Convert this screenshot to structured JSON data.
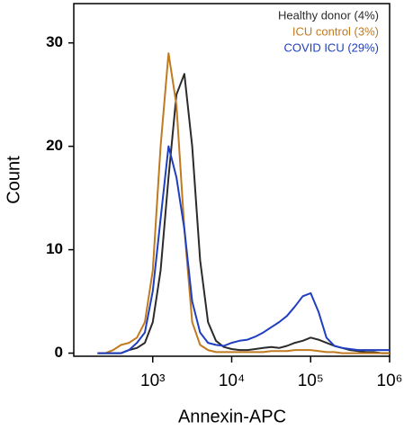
{
  "chart_data": {
    "type": "line",
    "x_label": "Annexin-APC",
    "y_label": "Count",
    "x": [
      200,
      251,
      316,
      398,
      501,
      631,
      794,
      1000,
      1259,
      1585,
      1995,
      2512,
      3162,
      3981,
      5012,
      6310,
      7943,
      10000,
      12589,
      15849,
      19953,
      25119,
      31623,
      39811,
      50119,
      63096,
      79433,
      100000,
      125893,
      158489,
      199526,
      251189,
      316228,
      398107,
      501187,
      630957,
      794328,
      1000000
    ],
    "series": [
      {
        "name": "Healthy donor (4%)",
        "color": "#2b2b2b",
        "values": [
          0,
          0,
          0,
          0,
          0.3,
          0.5,
          1,
          3,
          8,
          17,
          25,
          27,
          20,
          9,
          3,
          1.2,
          0.6,
          0.4,
          0.3,
          0.3,
          0.4,
          0.5,
          0.6,
          0.5,
          0.7,
          1,
          1.2,
          1.5,
          1.3,
          1,
          0.7,
          0.5,
          0.3,
          0.2,
          0.1,
          0.1,
          0,
          0
        ]
      },
      {
        "name": "ICU control (3%)",
        "color": "#c07a20",
        "values": [
          0,
          0,
          0.3,
          0.8,
          1,
          1.5,
          3,
          8,
          20,
          29,
          24,
          12,
          3,
          0.8,
          0.3,
          0.1,
          0.1,
          0.1,
          0.1,
          0.1,
          0.1,
          0.1,
          0.2,
          0.2,
          0.2,
          0.3,
          0.3,
          0.3,
          0.2,
          0.1,
          0.1,
          0,
          0,
          0,
          0,
          0,
          0,
          0
        ]
      },
      {
        "name": "COVID ICU (29%)",
        "color": "#1f3fbf",
        "values": [
          0,
          0,
          0,
          0,
          0.3,
          1,
          2,
          6,
          13,
          20,
          17,
          12,
          5,
          2,
          1,
          0.8,
          0.7,
          1,
          1.2,
          1.3,
          1.6,
          2,
          2.5,
          3,
          3.6,
          4.5,
          5.5,
          5.8,
          4,
          1.5,
          0.7,
          0.5,
          0.4,
          0.3,
          0.3,
          0.3,
          0.3,
          0.3
        ]
      }
    ],
    "log_x": true,
    "xlim": [
      100,
      1000000
    ],
    "ylim": [
      -0.3,
      33.8
    ],
    "xticks": [
      {
        "value": 1000,
        "label": "10³"
      },
      {
        "value": 10000,
        "label": "10⁴"
      },
      {
        "value": 100000,
        "label": "10⁵"
      },
      {
        "value": 1000000,
        "label": "10⁶"
      }
    ],
    "yticks": [
      0,
      10,
      20,
      30
    ],
    "legend_position": "upper right"
  }
}
